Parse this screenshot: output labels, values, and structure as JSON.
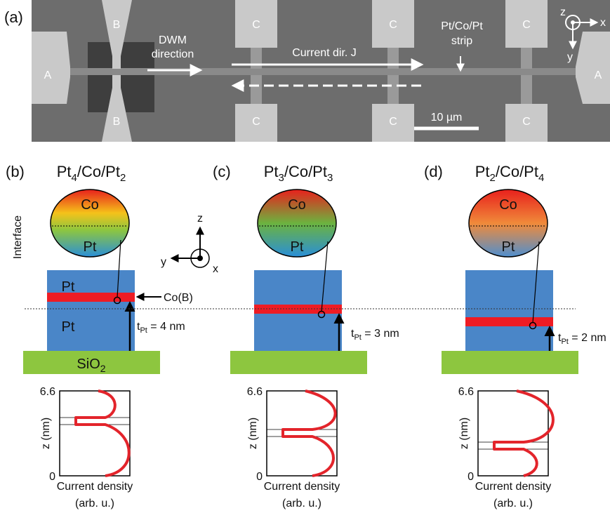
{
  "panel_a": {
    "label": "(a)",
    "pad_labels": [
      "A",
      "B",
      "B",
      "C",
      "C",
      "C",
      "C",
      "C",
      "C",
      "A"
    ],
    "dwm": [
      "DWM",
      "direction"
    ],
    "current": "Current dir. J",
    "strip": [
      "Pt/Co/Pt",
      "strip"
    ],
    "scale_bar": "10 µm",
    "axes": {
      "z": "z",
      "x": "x",
      "y": "y"
    }
  },
  "interface": "Interface",
  "layers": {
    "upper": "Pt",
    "lower": "Pt"
  },
  "co_b": "Co(B)",
  "substrate": [
    "SiO",
    "2"
  ],
  "axes_icon": {
    "z": "z",
    "y": "y",
    "x": "x"
  },
  "panels": [
    {
      "label": "(b)",
      "title": [
        "Pt",
        "4",
        "/Co/Pt",
        "2"
      ],
      "ellipse": {
        "top": "Co",
        "bottom": "Pt"
      },
      "thickness": [
        "t",
        "Pt",
        " = 4 nm"
      ],
      "plot": {
        "ylim": [
          0,
          6.6
        ],
        "yticks": [
          0,
          6.6
        ],
        "ylabel": "z (nm)",
        "xlabel": [
          "Current density",
          "(arb. u.)"
        ]
      }
    },
    {
      "label": "(c)",
      "title": [
        "Pt",
        "3",
        "/Co/Pt",
        "3"
      ],
      "ellipse": {
        "top": "Co",
        "bottom": "Pt"
      },
      "thickness": [
        "t",
        "Pt",
        " = 3 nm"
      ],
      "plot": {
        "ylim": [
          0,
          6.6
        ],
        "yticks": [
          0,
          6.6
        ],
        "ylabel": "z (nm)",
        "xlabel": [
          "Current density",
          "(arb. u.)"
        ]
      }
    },
    {
      "label": "(d)",
      "title": [
        "Pt",
        "2",
        "/Co/Pt",
        "4"
      ],
      "ellipse": {
        "top": "Co",
        "bottom": "Pt"
      },
      "thickness": [
        "t",
        "Pt",
        " = 2 nm"
      ],
      "plot": {
        "ylim": [
          0,
          6.6
        ],
        "yticks": [
          0,
          6.6
        ],
        "ylabel": "z (nm)",
        "xlabel": [
          "Current density",
          "(arb. u.)"
        ]
      }
    }
  ]
}
